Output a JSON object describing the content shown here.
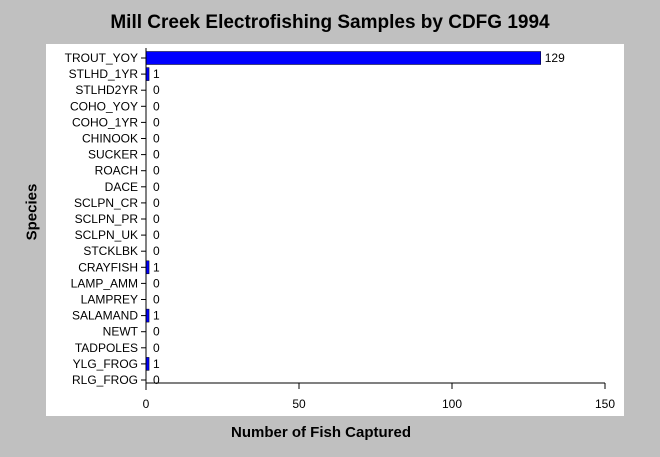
{
  "chart_data": {
    "type": "bar",
    "orientation": "horizontal",
    "title": "Mill Creek Electrofishing Samples by CDFG 1994",
    "xlabel": "Number of Fish Captured",
    "ylabel": "Species",
    "categories": [
      "TROUT_YOY",
      "STLHD_1YR",
      "STLHD2YR",
      "COHO_YOY",
      "COHO_1YR",
      "CHINOOK",
      "SUCKER",
      "ROACH",
      "DACE",
      "SCLPN_CR",
      "SCLPN_PR",
      "SCLPN_UK",
      "STCKLBK",
      "CRAYFISH",
      "LAMP_AMM",
      "LAMPREY",
      "SALAMAND",
      "NEWT",
      "TADPOLES",
      "YLG_FROG",
      "RLG_FROG"
    ],
    "values": [
      129,
      1,
      0,
      0,
      0,
      0,
      0,
      0,
      0,
      0,
      0,
      0,
      0,
      1,
      0,
      0,
      1,
      0,
      0,
      1,
      0
    ],
    "data_labels": [
      "129",
      "1",
      "0",
      "0",
      "0",
      "0",
      "0",
      "0",
      "0",
      "0",
      "0",
      "0",
      "0",
      "1",
      "0",
      "0",
      "1",
      "0",
      "0",
      "1",
      "0"
    ],
    "xlim": [
      0,
      150
    ],
    "xticks": [
      0,
      50,
      100,
      150
    ],
    "xtick_labels": [
      "0",
      "50",
      "100",
      "150"
    ],
    "grid": false,
    "colors": {
      "bar": "#0000ff",
      "plot_background": "#ffffff",
      "page_background": "#c0c0c0"
    }
  }
}
